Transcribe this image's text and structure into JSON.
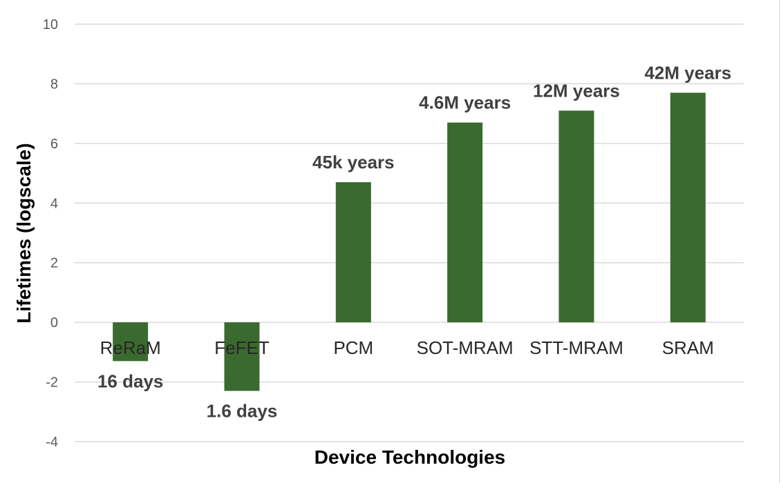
{
  "chart_data": {
    "type": "bar",
    "title": "",
    "xlabel": "Device Technologies",
    "ylabel": "Lifetimes (logscale)",
    "ylim": [
      -4,
      10
    ],
    "yticks": [
      -4,
      -2,
      0,
      2,
      4,
      6,
      8,
      10
    ],
    "grid": true,
    "legend": "none",
    "bar_color": "#3a6a2f",
    "categories": [
      "ReRaM",
      "FeFET",
      "PCM",
      "SOT-MRAM",
      "STT-MRAM",
      "SRAM"
    ],
    "values": [
      -1.3,
      -2.3,
      4.7,
      6.7,
      7.1,
      7.7
    ],
    "data_labels": [
      "16 days",
      "1.6 days",
      "45k years",
      "4.6M years",
      "12M years",
      "42M years"
    ]
  }
}
